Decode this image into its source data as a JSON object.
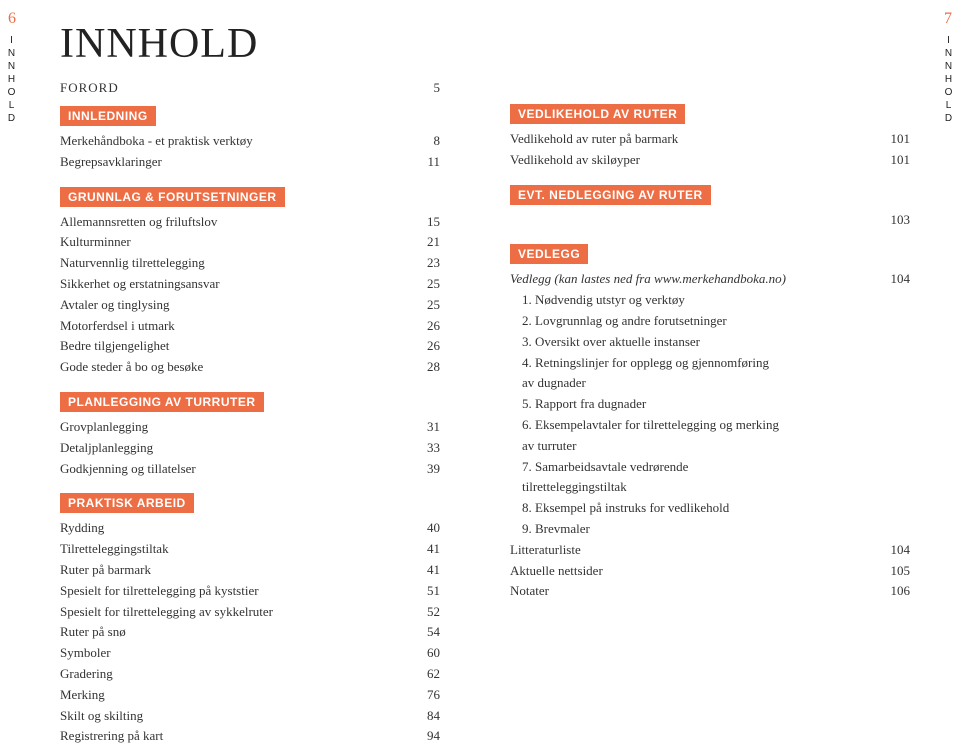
{
  "pageLeftNum": "6",
  "pageRightNum": "7",
  "sideLabel": "INNHOLD",
  "mainTitle": "INNHOLD",
  "forord": {
    "label": "FORORD",
    "num": "5"
  },
  "sections": {
    "innledning": {
      "title": "INNLEDNING",
      "rows": [
        {
          "label": "Merkehåndboka - et praktisk verktøy",
          "num": "8"
        },
        {
          "label": "Begrepsavklaringer",
          "num": "11"
        }
      ]
    },
    "grunnlag": {
      "title": "GRUNNLAG & FORUTSETNINGER",
      "rows": [
        {
          "label": "Allemannsretten og friluftslov",
          "num": "15"
        },
        {
          "label": "Kulturminner",
          "num": "21"
        },
        {
          "label": "Naturvennlig tilrettelegging",
          "num": "23"
        },
        {
          "label": "Sikkerhet og erstatningsansvar",
          "num": "25"
        },
        {
          "label": "Avtaler og tinglysing",
          "num": "25"
        },
        {
          "label": "Motorferdsel i utmark",
          "num": "26"
        },
        {
          "label": "Bedre tilgjengelighet",
          "num": "26"
        },
        {
          "label": "Gode steder å bo og besøke",
          "num": "28"
        }
      ]
    },
    "planlegging": {
      "title": "PLANLEGGING AV TURRUTER",
      "rows": [
        {
          "label": "Grovplanlegging",
          "num": "31"
        },
        {
          "label": "Detaljplanlegging",
          "num": "33"
        },
        {
          "label": "Godkjenning og tillatelser",
          "num": "39"
        }
      ]
    },
    "praktisk": {
      "title": "PRAKTISK ARBEID",
      "rows": [
        {
          "label": "Rydding",
          "num": "40"
        },
        {
          "label": "Tilretteleggingstiltak",
          "num": "41"
        },
        {
          "label": "Ruter på barmark",
          "num": "41"
        },
        {
          "label": "Spesielt for tilrettelegging på kyststier",
          "num": "51"
        },
        {
          "label": "Spesielt for tilrettelegging av sykkelruter",
          "num": "52"
        },
        {
          "label": "Ruter på snø",
          "num": "54"
        },
        {
          "label": "Symboler",
          "num": "60"
        },
        {
          "label": "Gradering",
          "num": "62"
        },
        {
          "label": "Merking",
          "num": "76"
        },
        {
          "label": "Skilt og skilting",
          "num": "84"
        },
        {
          "label": "Registrering på kart",
          "num": "94"
        }
      ]
    },
    "vedlikehold": {
      "title": "VEDLIKEHOLD AV RUTER",
      "rows": [
        {
          "label": "Vedlikehold av ruter på barmark",
          "num": "101"
        },
        {
          "label": "Vedlikehold av skiløyper",
          "num": "101"
        }
      ]
    },
    "nedlegging": {
      "title": "EVT. NEDLEGGING AV RUTER",
      "rows": [
        {
          "label": "",
          "num": "103"
        }
      ]
    },
    "vedlegg": {
      "title": "VEDLEGG",
      "firstRow": {
        "label": "Vedlegg (kan lastes ned fra www.merkehandboka.no)",
        "num": "104"
      },
      "list": [
        "1. Nødvendig utstyr og verktøy",
        "2. Lovgrunnlag og andre forutsetninger",
        "3. Oversikt over aktuelle instanser",
        "4. Retningslinjer for opplegg og gjennomføring",
        "   av dugnader",
        "5. Rapport fra dugnader",
        "6. Eksempelavtaler for tilrettelegging og merking",
        "   av turruter",
        "7. Samarbeidsavtale vedrørende",
        "   tilretteleggingstiltak",
        "8. Eksempel på instruks for vedlikehold",
        "9. Brevmaler"
      ],
      "bottomRows": [
        {
          "label": "Litteraturliste",
          "num": "104"
        },
        {
          "label": "Aktuelle nettsider",
          "num": "105"
        },
        {
          "label": "Notater",
          "num": "106"
        }
      ]
    }
  }
}
